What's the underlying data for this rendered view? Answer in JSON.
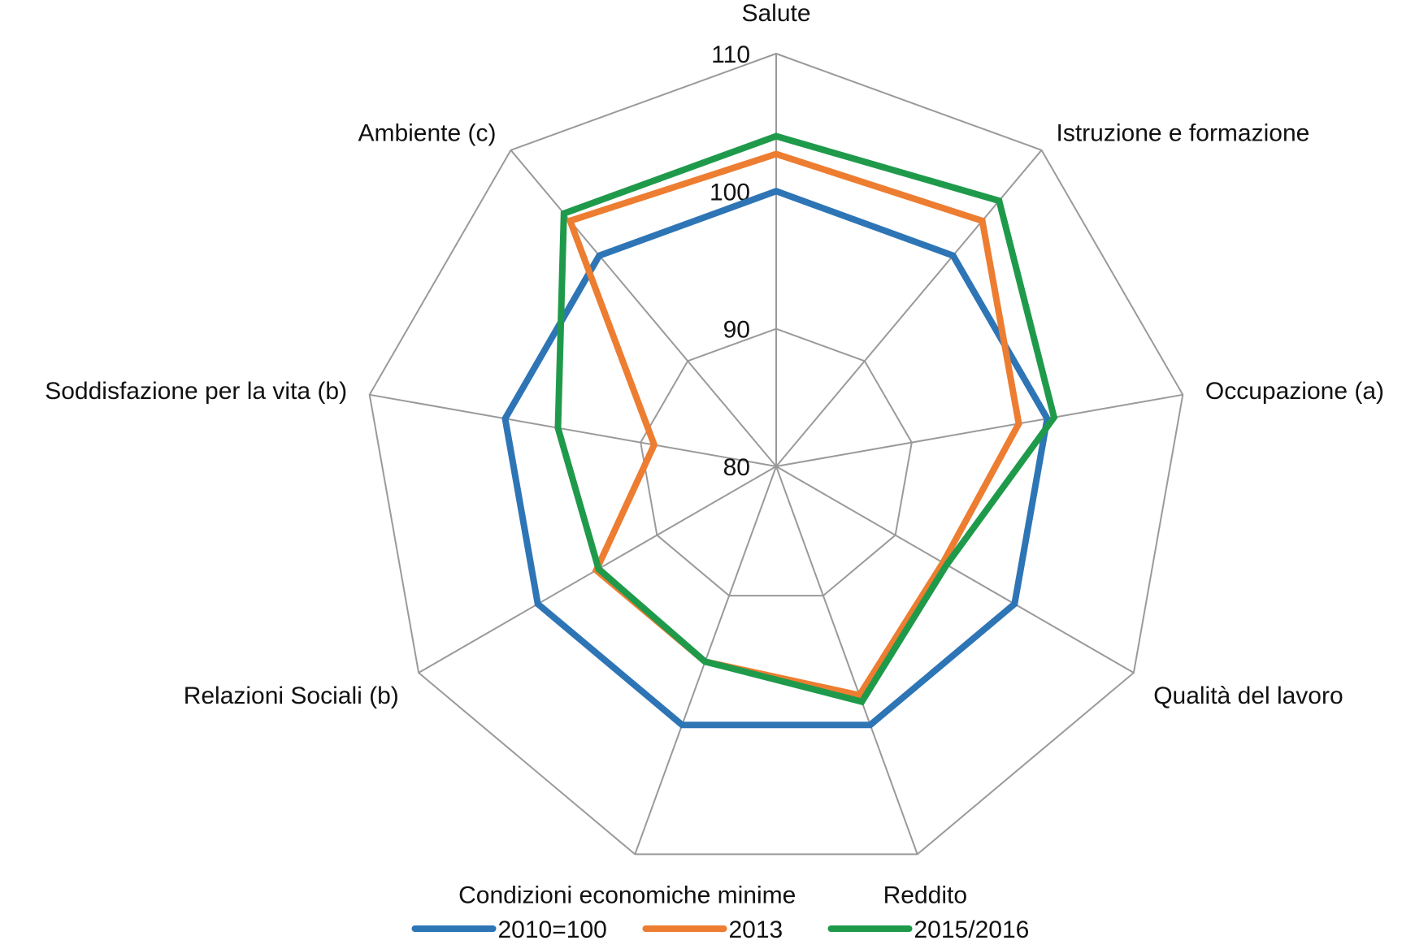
{
  "chart_data": {
    "type": "radar",
    "axes": [
      "Salute",
      "Istruzione e formazione",
      "Occupazione (a)",
      "Qualità del lavoro",
      "Reddito",
      "Condizioni economiche minime",
      "Relazioni Sociali (b)",
      "Soddisfazione per la vita (b)",
      "Ambiente (c)"
    ],
    "scale": {
      "min": 80,
      "max": 110,
      "step": 10
    },
    "ticks": [
      "80",
      "90",
      "100",
      "110"
    ],
    "grid": true,
    "legend_position": "bottom",
    "series": [
      {
        "name": "2010=100",
        "color": "#2e75b6",
        "values": [
          100,
          100,
          100,
          100,
          100,
          100,
          100,
          100,
          100
        ]
      },
      {
        "name": "2013",
        "color": "#ed7d31",
        "values": [
          102.7,
          103.3,
          97.9,
          94.0,
          97.7,
          95.1,
          95.1,
          89.0,
          103.3
        ]
      },
      {
        "name": "2015/2016",
        "color": "#1f9a4b",
        "values": [
          104.0,
          105.2,
          100.5,
          94.3,
          98.2,
          95.1,
          94.9,
          96.1,
          104.0
        ]
      }
    ]
  }
}
